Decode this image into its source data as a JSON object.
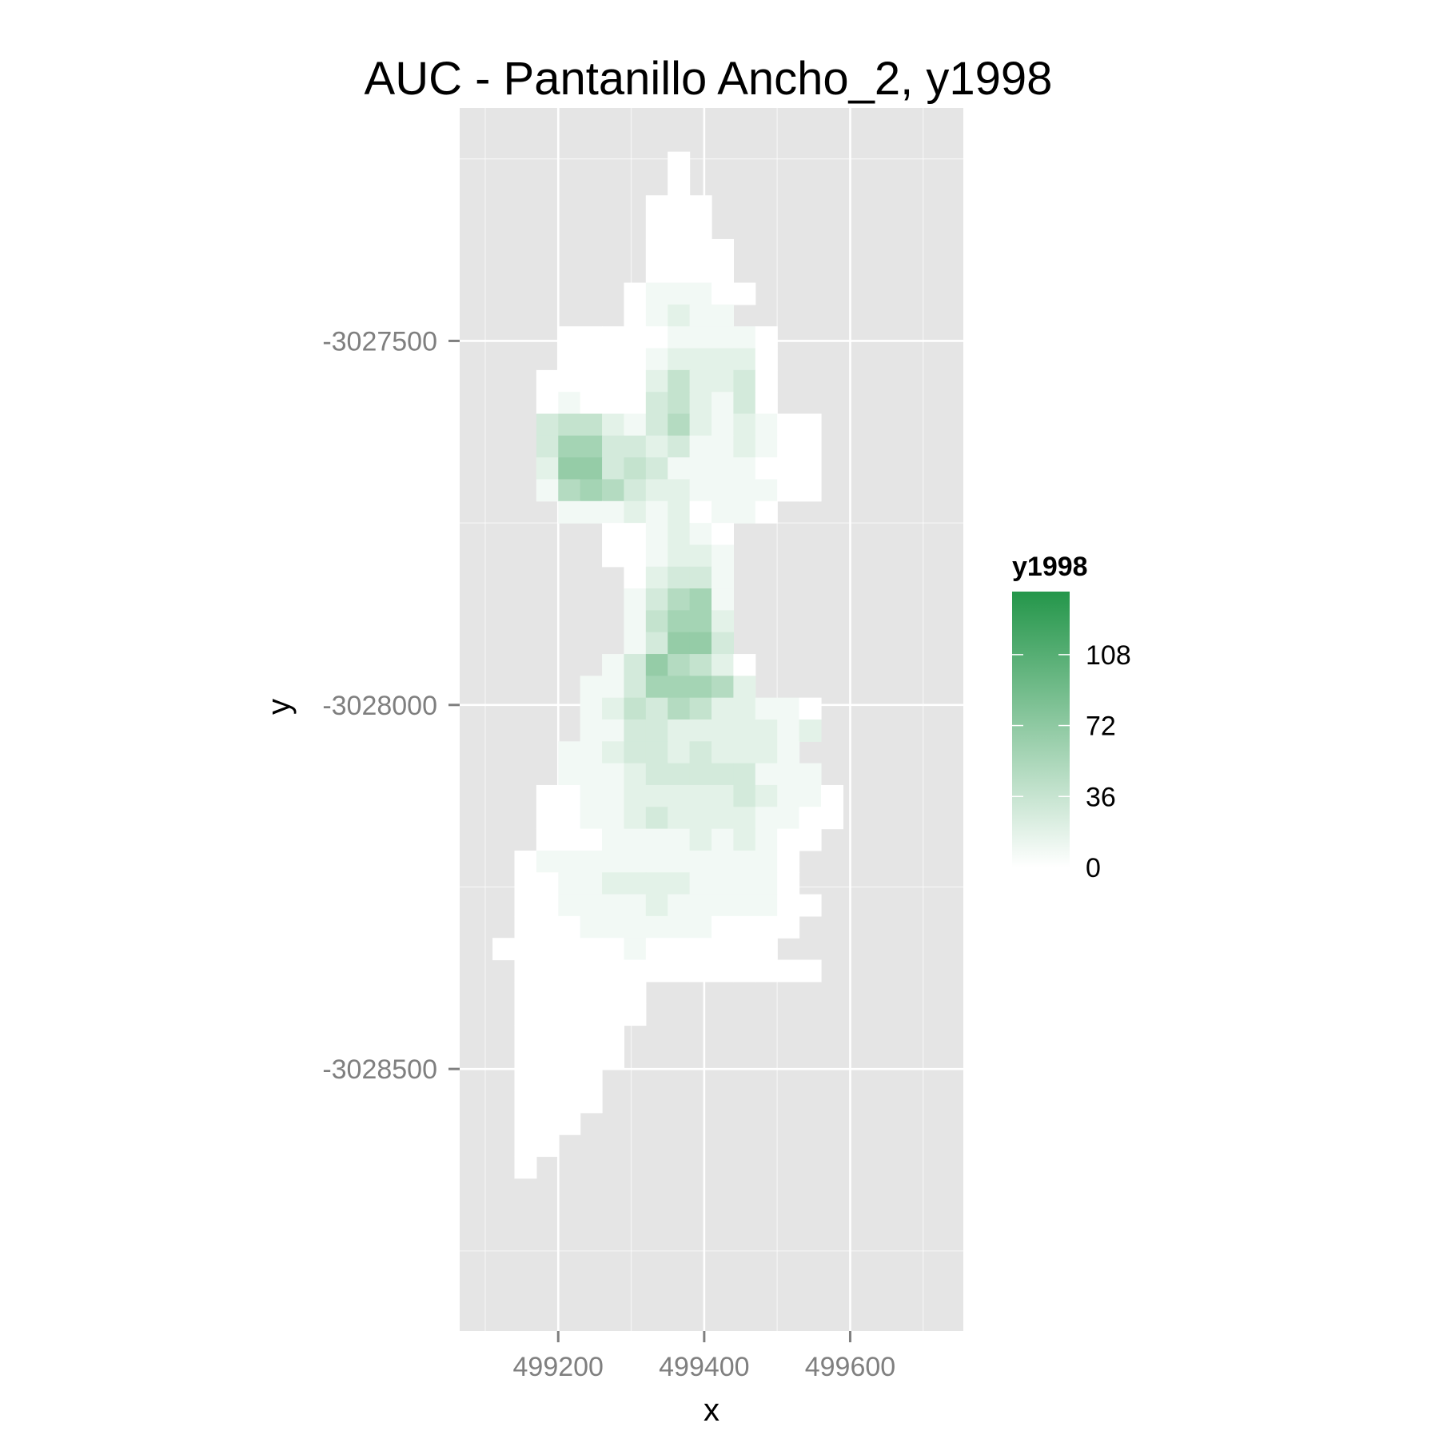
{
  "chart_data": {
    "type": "heatmap",
    "title": "AUC - Pantanillo Ancho_2, y1998",
    "xlabel": "x",
    "ylabel": "y",
    "xlim": [
      499065,
      499755
    ],
    "ylim": [
      -3028860,
      -3027180
    ],
    "x_ticks": [
      {
        "value": 499200,
        "label": "499200"
      },
      {
        "value": 499400,
        "label": "499400"
      },
      {
        "value": 499600,
        "label": "499600"
      }
    ],
    "y_ticks": [
      {
        "value": -3027500,
        "label": "-3027500"
      },
      {
        "value": -3028000,
        "label": "-3028000"
      },
      {
        "value": -3028500,
        "label": "-3028500"
      }
    ],
    "grid": true,
    "cell_size": 30,
    "cell_origin_x": 499125,
    "cell_origin_y": -3027255,
    "value_grid": [
      "........0.......",
      "........0.......",
      ".......000......",
      ".......000......",
      ".......0000.....",
      ".......0000.....",
      "......011100....",
      "......01211.....",
      "...0000011110...",
      "...0000122220...",
      "..00000242230...",
      "..01000342130...",
      "..3442135212100.",
      "..3663323112100.",
      "..2773431111000.",
      "..1565322111100.",
      "...1112120110...",
      ".....001210......",
      ".....001221.....",
      "......02331.....",
      "......13561.....",
      "......14662.....",
      "......13773....",
      ".....1375420....",
      "....11366652.....",
      "....12435422110.",
      "....11332222212.",
      "...11233232221..",
      "...111233333111.",
      "..00112222232110",
      "..00112322221100",
      "..0001111212100.",
      ".0111111111110..",
      ".0011222211110..",
      ".00111121111100.",
      ".0001111110000..",
      "0000001000000...",
      ".00000000000000.",
      ".000000.........",
      ".000000.........",
      ".00000..........",
      ".00000..........",
      ".0000...........",
      ".0000...........",
      ".000............",
      ".00.............",
      ".0.............."
    ],
    "value_levels": [
      0,
      8,
      18,
      28,
      38,
      48,
      58,
      68,
      80,
      95
    ],
    "legend": {
      "title": "y1998",
      "position": "right",
      "min": 0,
      "max": 140,
      "ticks": [
        0,
        36,
        72,
        108
      ],
      "tick_labels": [
        "0",
        "36",
        "72",
        "108"
      ],
      "low_color": "#ffffff",
      "high_color": "#24964a"
    },
    "panel_color": "#e5e5e5",
    "grid_color": "#ffffff",
    "na_color": "#e5e5e5"
  }
}
